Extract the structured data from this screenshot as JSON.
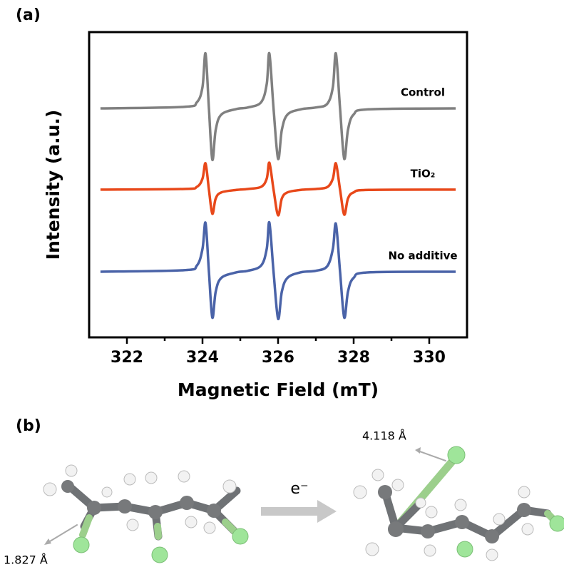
{
  "figure": {
    "panel_a": "(a)",
    "panel_b": "(b)",
    "electron": "e⁻",
    "distance_after": "4.118 Å",
    "distance_before": "1.827 Å"
  },
  "chart_data": {
    "type": "line",
    "x_label": "Magnetic Field (mT)",
    "y_label": "Intensity (a.u.)",
    "x": [
      321.3,
      323.5,
      323.85,
      324.0,
      324.08,
      324.17,
      324.26,
      324.35,
      324.5,
      324.9,
      325.2,
      325.55,
      325.7,
      325.77,
      325.88,
      326.0,
      326.1,
      326.25,
      326.6,
      327.0,
      327.3,
      327.45,
      327.53,
      327.64,
      327.75,
      327.85,
      328.0,
      328.4,
      330.7
    ],
    "series": [
      {
        "name": "Control",
        "color": "#808080",
        "values": [
          75,
          75.5,
          77,
          82,
          93,
          75,
          58.2,
          68,
          73,
          74.8,
          75.3,
          77,
          83,
          93,
          75,
          58.5,
          68,
          73,
          74.7,
          75.3,
          76.5,
          82,
          93,
          75,
          58.5,
          68,
          73,
          74.7,
          75
        ]
      },
      {
        "name": "TiO₂",
        "color": "#e8481a",
        "values": [
          48.4,
          48.6,
          49.3,
          52,
          57,
          48.4,
          40.5,
          45.5,
          47.5,
          48.3,
          48.6,
          49.3,
          52,
          57.2,
          48.4,
          40,
          45.5,
          47.5,
          48.3,
          48.6,
          49.2,
          52,
          57,
          48.4,
          40.2,
          45.5,
          47.5,
          48.3,
          48.4
        ]
      },
      {
        "name": "No additive",
        "color": "#4a63a8",
        "values": [
          21.5,
          22,
          23.5,
          29,
          37.5,
          21.5,
          6.5,
          15,
          19.5,
          21.3,
          21.8,
          23.5,
          29,
          37.6,
          21.5,
          6.1,
          15,
          19.5,
          21.3,
          21.8,
          23.3,
          29,
          37.2,
          21.5,
          6.5,
          15,
          19.5,
          21.3,
          21.5
        ]
      }
    ],
    "xlim": [
      321,
      331
    ],
    "xticks": [
      322,
      324,
      326,
      328,
      330
    ],
    "xticks_minor": [
      323,
      325,
      327,
      329
    ],
    "ylim": [
      0,
      100
    ]
  }
}
